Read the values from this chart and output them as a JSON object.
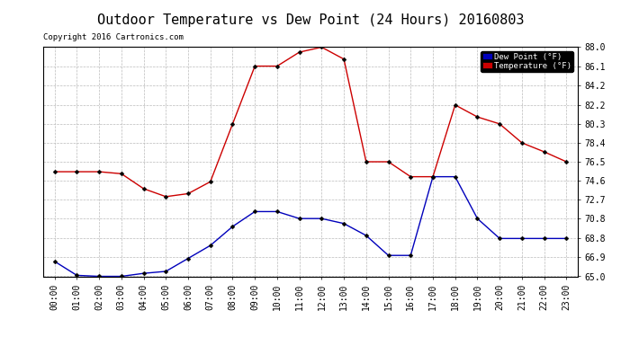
{
  "title": "Outdoor Temperature vs Dew Point (24 Hours) 20160803",
  "copyright": "Copyright 2016 Cartronics.com",
  "hours": [
    "00:00",
    "01:00",
    "02:00",
    "03:00",
    "04:00",
    "05:00",
    "06:00",
    "07:00",
    "08:00",
    "09:00",
    "10:00",
    "11:00",
    "12:00",
    "13:00",
    "14:00",
    "15:00",
    "16:00",
    "17:00",
    "18:00",
    "19:00",
    "20:00",
    "21:00",
    "22:00",
    "23:00"
  ],
  "temperature": [
    75.5,
    75.5,
    75.5,
    75.3,
    73.8,
    73.0,
    73.3,
    74.5,
    80.3,
    86.1,
    86.1,
    87.5,
    88.0,
    86.8,
    76.5,
    76.5,
    75.0,
    75.0,
    82.2,
    81.0,
    80.3,
    78.4,
    77.5,
    76.5
  ],
  "dew_point": [
    66.5,
    65.1,
    65.0,
    65.0,
    65.3,
    65.5,
    66.8,
    68.1,
    70.0,
    71.5,
    71.5,
    70.8,
    70.8,
    70.3,
    69.1,
    67.1,
    67.1,
    75.0,
    75.0,
    70.8,
    68.8,
    68.8,
    68.8,
    68.8
  ],
  "ylim": [
    65.0,
    88.0
  ],
  "yticks": [
    65.0,
    66.9,
    68.8,
    70.8,
    72.7,
    74.6,
    76.5,
    78.4,
    80.3,
    82.2,
    84.2,
    86.1,
    88.0
  ],
  "temp_color": "#cc0000",
  "dew_color": "#0000bb",
  "bg_color": "#ffffff",
  "grid_color": "#bbbbbb",
  "title_fontsize": 11,
  "tick_fontsize": 7,
  "legend_dew_label": "Dew Point (°F)",
  "legend_temp_label": "Temperature (°F)"
}
